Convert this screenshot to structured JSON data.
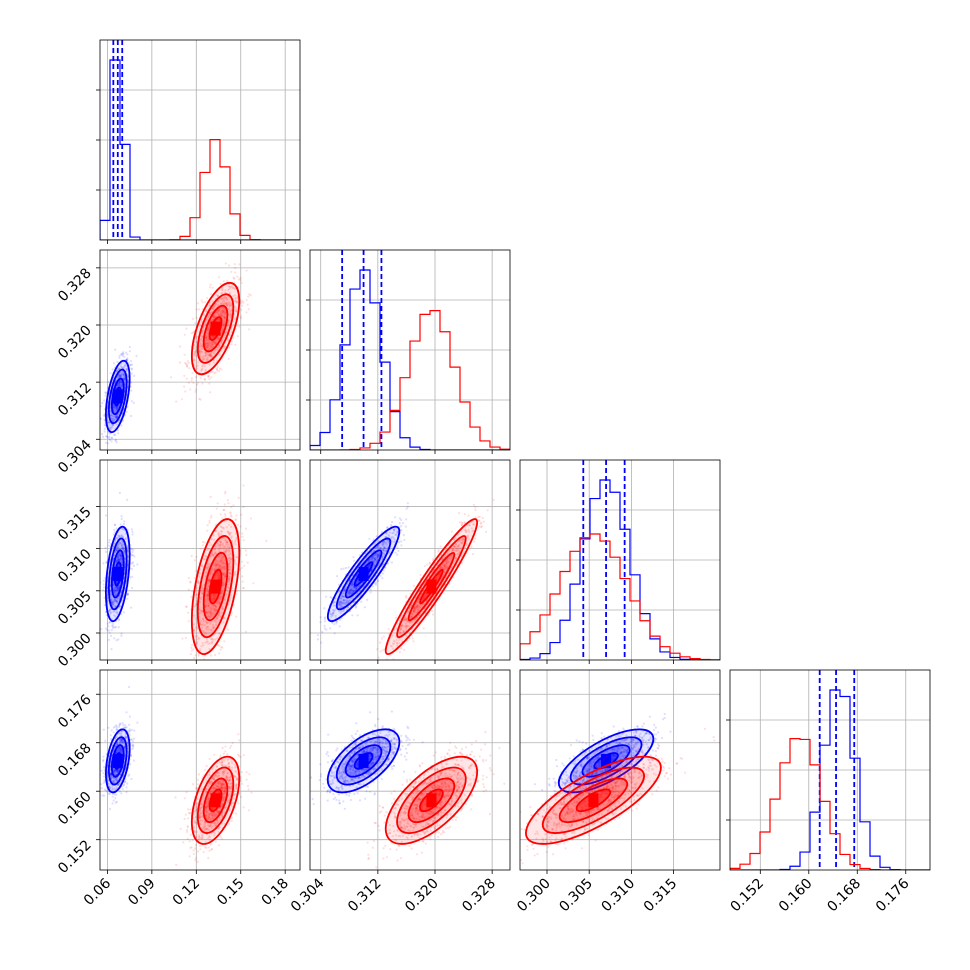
{
  "chart_data": {
    "type": "corner",
    "grid": true,
    "colors": {
      "blue": "#0000ff",
      "red": "#ff0000"
    },
    "parameters": [
      {
        "ticks": [
          0.06,
          0.09,
          0.12,
          0.15,
          0.18
        ],
        "tick_labels": [
          "0.06",
          "0.09",
          "0.12",
          "0.15",
          "0.18"
        ],
        "range": [
          0.055,
          0.19
        ]
      },
      {
        "ticks": [
          0.304,
          0.312,
          0.32,
          0.328
        ],
        "tick_labels": [
          "0.304",
          "0.312",
          "0.320",
          "0.328"
        ],
        "range": [
          0.3025,
          0.3305
        ]
      },
      {
        "ticks": [
          0.3,
          0.305,
          0.31,
          0.315
        ],
        "tick_labels": [
          "0.300",
          "0.305",
          "0.310",
          "0.315"
        ],
        "range": [
          0.2968,
          0.3205
        ]
      },
      {
        "ticks": [
          0.152,
          0.16,
          0.168,
          0.176
        ],
        "tick_labels": [
          "0.152",
          "0.160",
          "0.168",
          "0.176"
        ],
        "range": [
          0.147,
          0.18
        ]
      }
    ],
    "series": [
      {
        "color": "blue",
        "mean": [
          0.067,
          0.31,
          0.307,
          0.165
        ],
        "std": [
          0.004,
          0.0025,
          0.0028,
          0.0026
        ],
        "quantiles": [
          [
            0.064,
            0.067,
            0.07
          ],
          [
            0.307,
            0.31,
            0.3125
          ],
          [
            0.3043,
            0.307,
            0.3092
          ],
          [
            0.1618,
            0.1645,
            0.1675
          ]
        ]
      },
      {
        "color": "red",
        "mean": [
          0.133,
          0.3195,
          0.3055,
          0.1585
        ],
        "std": [
          0.008,
          0.0032,
          0.004,
          0.0036
        ],
        "quantiles": []
      }
    ],
    "correlations": [
      {
        "pair": [
          0,
          1
        ],
        "blue": 0.5,
        "red": 0.6
      },
      {
        "pair": [
          0,
          2
        ],
        "blue": 0.4,
        "red": 0.5
      },
      {
        "pair": [
          0,
          3
        ],
        "blue": 0.4,
        "red": 0.5
      },
      {
        "pair": [
          1,
          2
        ],
        "blue": 0.9,
        "red": 0.95
      },
      {
        "pair": [
          1,
          3
        ],
        "blue": 0.6,
        "red": 0.65
      },
      {
        "pair": [
          2,
          3
        ],
        "blue": 0.7,
        "red": 0.75
      }
    ]
  }
}
